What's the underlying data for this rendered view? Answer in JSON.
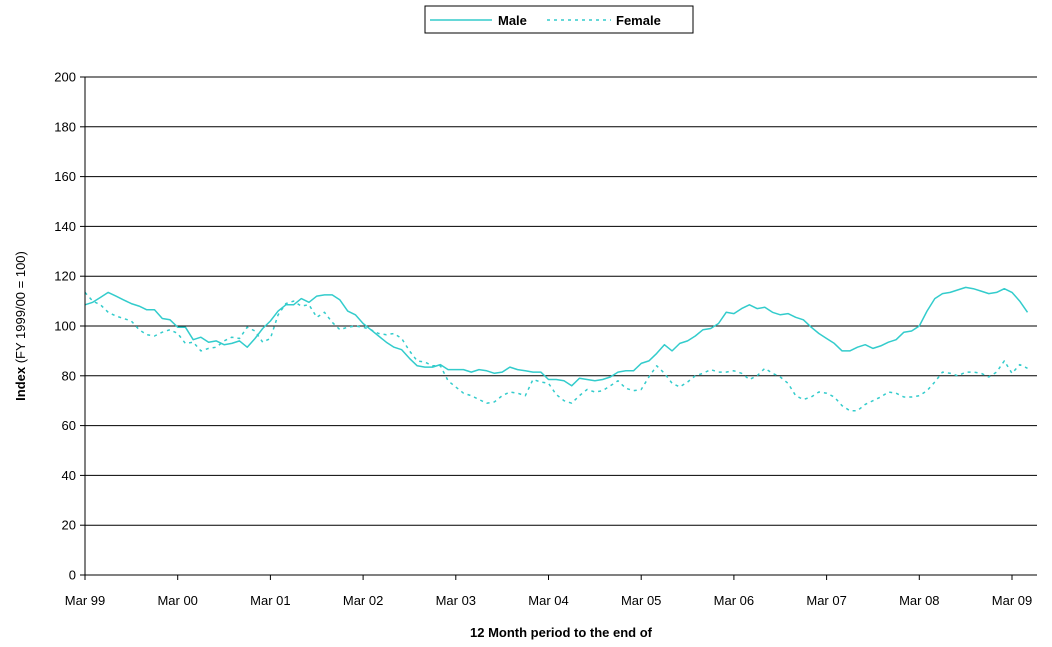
{
  "chart_data": {
    "type": "line",
    "xlabel": "12 Month period to the end of",
    "ylabel_bold": "Index",
    "ylabel_rest": " (FY 1999/00 = 100)",
    "ylim": [
      0,
      200
    ],
    "yticks": [
      0,
      20,
      40,
      60,
      80,
      100,
      120,
      140,
      160,
      180,
      200
    ],
    "xticks": [
      "Mar 99",
      "Mar 00",
      "Mar 01",
      "Mar 02",
      "Mar 03",
      "Mar 04",
      "Mar 05",
      "Mar 06",
      "Mar 07",
      "Mar 08",
      "Mar 09"
    ],
    "grid": "horizontal",
    "legend_position": "top-center",
    "series": [
      {
        "name": "Male",
        "color": "#33CCCC",
        "style": "solid",
        "values": [
          108.5,
          109.5,
          111.5,
          113.5,
          112,
          110.5,
          109,
          108,
          106.5,
          106.5,
          103,
          102.5,
          99.5,
          99.5,
          94.5,
          95.5,
          93.5,
          94,
          92.5,
          93,
          94,
          91.5,
          95,
          99,
          102,
          106,
          108.5,
          108.5,
          111,
          109.5,
          112,
          112.5,
          112.5,
          110.5,
          106,
          104.5,
          101,
          98.5,
          96,
          93.5,
          91.5,
          90.5,
          87,
          84,
          83.5,
          83.5,
          84.5,
          82.5,
          82.5,
          82.5,
          81.5,
          82.5,
          82,
          81,
          81.5,
          83.5,
          82.5,
          82,
          81.5,
          81.5,
          78.5,
          78.5,
          78,
          76,
          79,
          78.5,
          78,
          78.5,
          79.5,
          81.5,
          82,
          82,
          85,
          86,
          89,
          92.5,
          90,
          93,
          94,
          96,
          98.5,
          99,
          101,
          105.5,
          105,
          107,
          108.5,
          107,
          107.5,
          105.5,
          104.5,
          105,
          103.5,
          102.5,
          99.5,
          97,
          95,
          93,
          90,
          90,
          91.5,
          92.5,
          91,
          92,
          93.5,
          94.5,
          97.5,
          98,
          100,
          106,
          111,
          113,
          113.5,
          114.5,
          115.5,
          115,
          114,
          113,
          113.5,
          115,
          113.5,
          110,
          105.5
        ]
      },
      {
        "name": "Female",
        "color": "#33CCCC",
        "style": "dotted",
        "values": [
          113.5,
          110,
          108.5,
          105.5,
          104,
          103,
          102,
          98.5,
          96.5,
          96,
          97.5,
          98.5,
          97,
          93,
          93.5,
          90,
          91,
          91.5,
          94,
          95.5,
          95,
          99.5,
          98,
          93.5,
          95,
          104.5,
          109,
          110,
          108,
          108.5,
          103.5,
          105.5,
          101.5,
          98.5,
          99.5,
          100,
          99.5,
          98.5,
          97,
          96.5,
          97,
          95,
          90,
          86,
          85.5,
          84,
          84,
          78,
          75.5,
          73,
          72,
          70.5,
          69,
          69.5,
          72,
          73.5,
          73,
          72,
          78.5,
          77.5,
          77,
          72.5,
          70,
          69,
          72,
          74.5,
          73.5,
          74,
          76,
          78,
          75,
          74,
          74.5,
          79.5,
          84,
          81,
          77,
          75.5,
          77.5,
          80,
          81,
          82.5,
          81.5,
          81.5,
          82,
          81,
          78.5,
          80,
          83,
          81,
          79.5,
          77,
          72,
          70.5,
          71.5,
          73.5,
          73,
          71.5,
          68,
          66,
          66,
          68.5,
          70,
          71.5,
          73.5,
          73,
          71.5,
          71.5,
          72,
          74,
          77.5,
          81.5,
          81,
          80,
          81.5,
          81.5,
          81,
          79.5,
          81.5,
          86,
          81,
          84.5,
          83
        ]
      }
    ]
  }
}
